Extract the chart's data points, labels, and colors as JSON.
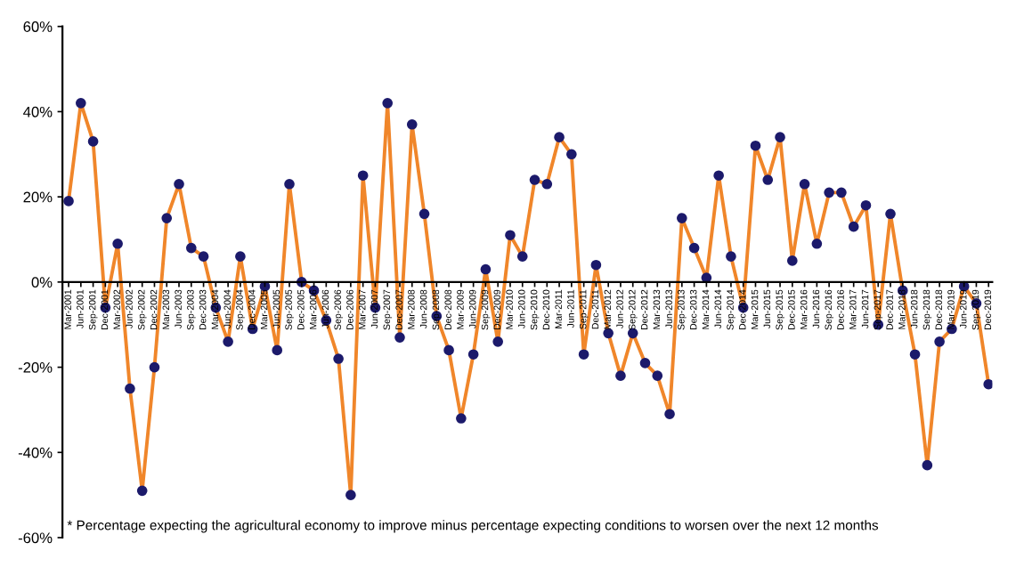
{
  "chart_data": {
    "type": "line",
    "categories": [
      "Mar-2001",
      "Jun-2001",
      "Sep-2001",
      "Dec-2001",
      "Mar-2002",
      "Jun-2002",
      "Sep-2002",
      "Dec-2002",
      "Mar-2003",
      "Jun-2003",
      "Sep-2003",
      "Dec-2003",
      "Mar-2004",
      "Jun-2004",
      "Sep-2004",
      "Dec-2004",
      "Mar-2005",
      "Jun-2005",
      "Sep-2005",
      "Dec-2005",
      "Mar-2006",
      "Jun-2006",
      "Sep-2006",
      "Dec-2006",
      "Mar-2007",
      "Jun-2007",
      "Sep-2007",
      "Dec-2007",
      "Mar-2008",
      "Jun-2008",
      "Sep-2008",
      "Dec-2008",
      "Mar-2009",
      "Jun-2009",
      "Sep-2009",
      "Dec-2009",
      "Mar-2010",
      "Jun-2010",
      "Sep-2010",
      "Dec-2010",
      "Mar-2011",
      "Jun-2011",
      "Sep-2011",
      "Dec-2011",
      "Mar-2012",
      "Jun-2012",
      "Sep-2012",
      "Dec-2012",
      "Mar-2013",
      "Jun-2013",
      "Sep-2013",
      "Dec-2013",
      "Mar-2014",
      "Jun-2014",
      "Sep-2014",
      "Dec-2014",
      "Mar-2015",
      "Jun-2015",
      "Sep-2015",
      "Dec-2015",
      "Mar-2016",
      "Jun-2016",
      "Sep-2016",
      "Dec-2016",
      "Mar-2017",
      "Jun-2017",
      "Sep-2017",
      "Dec-2017",
      "Mar-2018",
      "Jun-2018",
      "Sep-2018",
      "Dec-2018",
      "Mar-2019",
      "Jun-2019",
      "Sep-2019",
      "Dec-2019"
    ],
    "series": [
      {
        "color": "#f0862a",
        "values": [
          19,
          42,
          33,
          -6,
          9,
          -25,
          -49,
          -20,
          15,
          23,
          8,
          6,
          -6,
          -14,
          6,
          -11,
          -1,
          -16,
          23,
          0,
          -2,
          -9,
          -18,
          -50,
          25,
          -6,
          42,
          -13,
          37,
          16,
          -8,
          -16,
          -32,
          -17,
          3,
          -14,
          11,
          6,
          24,
          23,
          34,
          30,
          -17,
          4,
          -12,
          -22,
          -12,
          -19,
          -22,
          -31,
          15,
          8,
          1,
          25,
          6,
          -6,
          32,
          24,
          34,
          5,
          23,
          9,
          21,
          21,
          13,
          18,
          -10,
          16,
          -2,
          -17,
          -43,
          -14,
          -11,
          -1,
          -5,
          -24
        ]
      }
    ],
    "ylim": [
      -60,
      60
    ],
    "yticks": [
      {
        "value": -60,
        "label": "-60%"
      },
      {
        "value": -40,
        "label": "-40%"
      },
      {
        "value": -20,
        "label": "-20%"
      },
      {
        "value": 0,
        "label": "0%"
      },
      {
        "value": 20,
        "label": "20%"
      },
      {
        "value": 40,
        "label": "40%"
      },
      {
        "value": 60,
        "label": "60%"
      }
    ],
    "marker": "circle",
    "line_style": "solid",
    "annotations": [
      "* Percentage expecting the agricultural economy to improve minus percentage expecting conditions to worsen over the next 12 months"
    ]
  }
}
